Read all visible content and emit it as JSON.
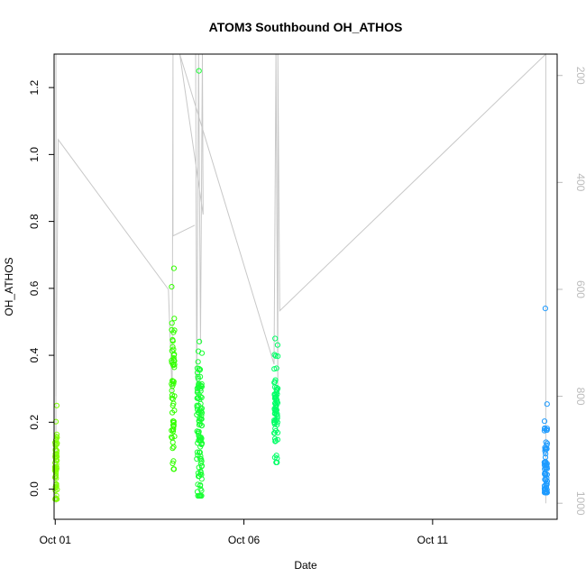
{
  "chart_data": {
    "type": "scatter",
    "title": "ATOM3 Southbound OH_ATHOS",
    "xlabel": "Date",
    "ylabel": "OH_ATHOS",
    "x_ticks": [
      "Oct 01",
      "Oct 06",
      "Oct 11"
    ],
    "x_tick_values": [
      1,
      6,
      11
    ],
    "xlim": [
      0.97,
      14.3
    ],
    "ylim": [
      -0.09,
      1.3
    ],
    "y_ticks": [
      "0.0",
      "0.2",
      "0.4",
      "0.6",
      "0.8",
      "1.0",
      "1.2"
    ],
    "y_tick_values": [
      0,
      0.2,
      0.4,
      0.6,
      0.8,
      1.0,
      1.2
    ],
    "right_axis": {
      "ticks": [
        "200",
        "400",
        "600",
        "800",
        "1000"
      ],
      "tick_values": [
        200,
        400,
        600,
        800,
        1000
      ],
      "lim": [
        1030,
        160
      ],
      "color": "#bbbbbb"
    },
    "colors": {
      "cluster1": "#7fff00",
      "cluster2": "#33ff00",
      "cluster3": "#19ff33",
      "cluster4": "#00ff66",
      "cluster5": "#1e9bff",
      "trace": "#c8c8c8"
    },
    "clusters": [
      {
        "x": 1.02,
        "x_spread": 0.03,
        "color_key": "cluster1",
        "n": 60,
        "y_low": -0.03,
        "y_high": 0.25,
        "y_center": 0.08,
        "y_std": 0.06
      },
      {
        "x": 4.12,
        "x_spread": 0.04,
        "color_key": "cluster2",
        "n": 60,
        "y_low": 0.06,
        "y_high": 0.66,
        "y_center": 0.28,
        "y_std": 0.13
      },
      {
        "x": 4.82,
        "x_spread": 0.07,
        "color_key": "cluster3",
        "n": 110,
        "y_low": -0.02,
        "y_high": 1.25,
        "y_center": 0.18,
        "y_std": 0.12
      },
      {
        "x": 6.85,
        "x_spread": 0.05,
        "color_key": "cluster4",
        "n": 70,
        "y_low": 0.08,
        "y_high": 0.45,
        "y_center": 0.24,
        "y_std": 0.07
      },
      {
        "x": 14.0,
        "x_spread": 0.04,
        "color_key": "cluster5",
        "n": 70,
        "y_low": -0.01,
        "y_high": 0.54,
        "y_center": 0.06,
        "y_std": 0.07
      }
    ],
    "trace_segments": [
      [
        [
          1.02,
          1000
        ],
        [
          1.02,
          160
        ],
        [
          1.02,
          550
        ]
      ],
      [
        [
          1.02,
          800
        ],
        [
          1.08,
          320
        ],
        [
          4.0,
          600
        ],
        [
          4.1,
          800
        ],
        [
          4.12,
          160
        ],
        [
          4.12,
          500
        ],
        [
          4.7,
          480
        ]
      ],
      [
        [
          4.72,
          160
        ],
        [
          4.75,
          800
        ],
        [
          4.8,
          160
        ],
        [
          4.85,
          700
        ],
        [
          4.9,
          160
        ],
        [
          4.92,
          460
        ],
        [
          4.3,
          160
        ],
        [
          6.8,
          740
        ],
        [
          6.85,
          160
        ],
        [
          6.9,
          800
        ],
        [
          6.9,
          160
        ],
        [
          6.95,
          640
        ],
        [
          14.0,
          160
        ],
        [
          14.0,
          1000
        ]
      ]
    ]
  }
}
